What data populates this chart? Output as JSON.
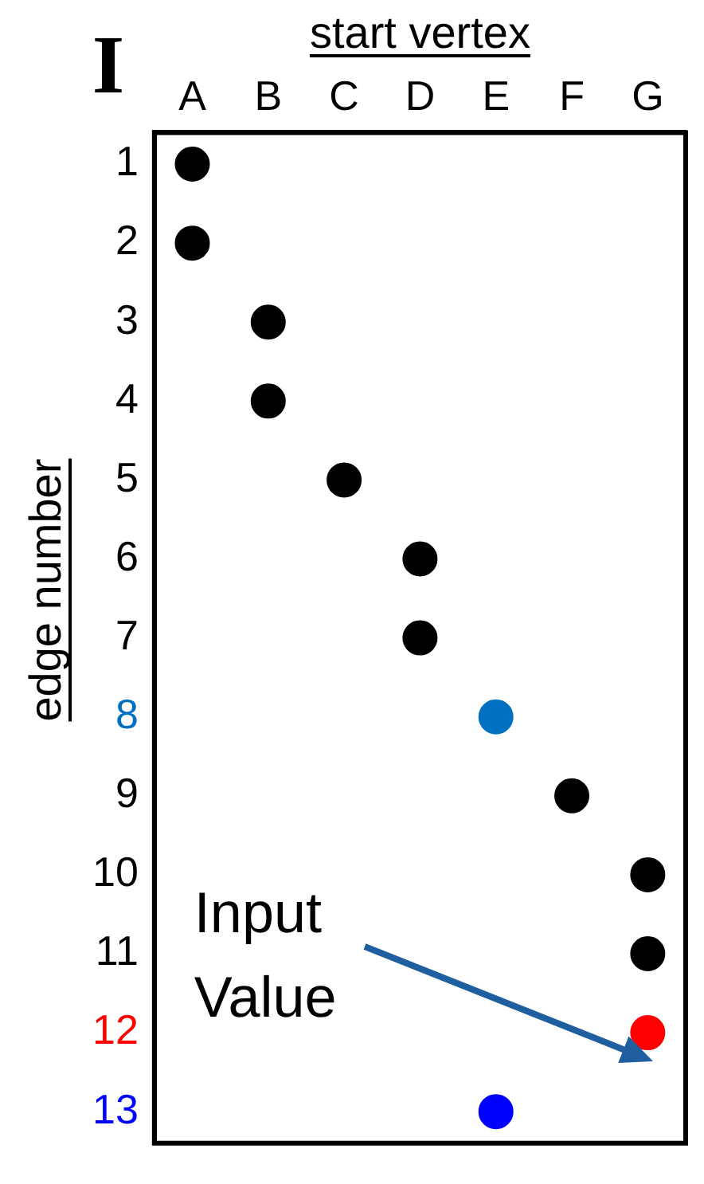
{
  "chart_data": {
    "type": "scatter",
    "xlabel": "start vertex",
    "ylabel": "edge number",
    "categories": [
      "A",
      "B",
      "C",
      "D",
      "E",
      "F",
      "G"
    ],
    "series": [
      {
        "x": [
          "A",
          "A",
          "B",
          "B",
          "C",
          "D",
          "D",
          "E",
          "F",
          "G",
          "G",
          "G",
          "E"
        ],
        "values": [
          1,
          2,
          3,
          4,
          5,
          6,
          7,
          8,
          9,
          10,
          11,
          12,
          13
        ],
        "colors": [
          "#000000",
          "#000000",
          "#000000",
          "#000000",
          "#000000",
          "#000000",
          "#000000",
          "#0070c0",
          "#000000",
          "#000000",
          "#000000",
          "#ff0000",
          "#0000ff"
        ]
      }
    ],
    "ylim": [
      13.4,
      0.6
    ],
    "yticks": [
      1,
      2,
      3,
      4,
      5,
      6,
      7,
      8,
      9,
      10,
      11,
      12,
      13
    ],
    "annotations": [
      "I",
      "Input Value"
    ],
    "grid": false,
    "legend": false,
    "marker": "circle"
  }
}
